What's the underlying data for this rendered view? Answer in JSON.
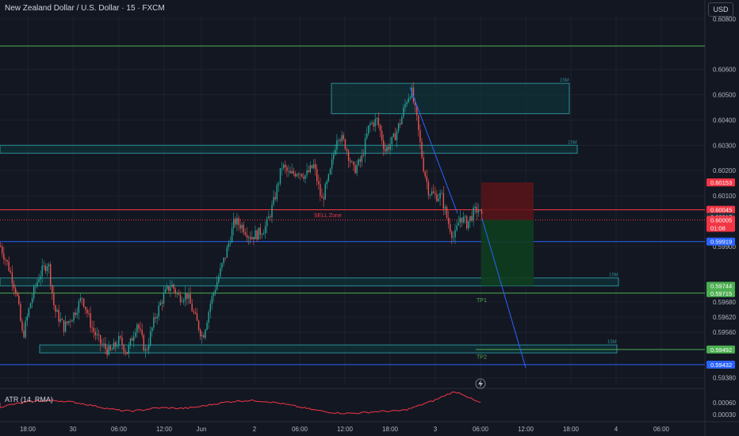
{
  "header": {
    "title": "New Zealand Dollar / U.S. Dollar · 15 · FXCM",
    "currency_button": "USD"
  },
  "indicator": {
    "label": "ATR (14, RMA)",
    "right_ticks": [
      "0.00060",
      "0.00030"
    ]
  },
  "colors": {
    "background": "#131722",
    "up_candle": "#26a69a",
    "down_candle": "#ef5350",
    "grid": "#1e222d",
    "zone_fill": "#0e3a3f",
    "zone_border": "#2a8d96",
    "green_line": "#4caf50",
    "blue_line": "#2962ff",
    "red_line": "#f23645",
    "atr_line": "#f23645"
  },
  "chart_data": {
    "type": "candlestick",
    "symbol": "NZDUSD",
    "timeframe": "15",
    "ylim": [
      0.5936,
      0.6084
    ],
    "y_ticks": [
      "0.60800",
      "0.60600",
      "0.60500",
      "0.60400",
      "0.60300",
      "0.60200",
      "0.60100",
      "0.59900",
      "0.59680",
      "0.59620",
      "0.59560",
      "0.59380"
    ],
    "x_ticks": [
      "18:00",
      "30",
      "06:00",
      "12:00",
      "Jun",
      "2",
      "06:00",
      "12:00",
      "18:00",
      "3",
      "06:00",
      "12:00",
      "18:00",
      "4",
      "06:00"
    ],
    "price_path": [
      [
        0,
        0.599
      ],
      [
        10,
        0.5982
      ],
      [
        20,
        0.5972
      ],
      [
        28,
        0.5954
      ],
      [
        38,
        0.5968
      ],
      [
        48,
        0.5978
      ],
      [
        60,
        0.5984
      ],
      [
        68,
        0.5965
      ],
      [
        80,
        0.5958
      ],
      [
        92,
        0.5963
      ],
      [
        103,
        0.597
      ],
      [
        115,
        0.5958
      ],
      [
        125,
        0.5952
      ],
      [
        138,
        0.5948
      ],
      [
        150,
        0.5953
      ],
      [
        160,
        0.5948
      ],
      [
        172,
        0.596
      ],
      [
        183,
        0.5948
      ],
      [
        195,
        0.5962
      ],
      [
        205,
        0.597
      ],
      [
        215,
        0.5975
      ],
      [
        225,
        0.597
      ],
      [
        235,
        0.5971
      ],
      [
        245,
        0.5962
      ],
      [
        255,
        0.5954
      ],
      [
        265,
        0.5968
      ],
      [
        275,
        0.5978
      ],
      [
        285,
        0.5988
      ],
      [
        295,
        0.6
      ],
      [
        305,
        0.5998
      ],
      [
        315,
        0.5994
      ],
      [
        325,
        0.5995
      ],
      [
        335,
        0.5998
      ],
      [
        345,
        0.6008
      ],
      [
        355,
        0.6022
      ],
      [
        365,
        0.6018
      ],
      [
        375,
        0.602
      ],
      [
        385,
        0.6018
      ],
      [
        395,
        0.6022
      ],
      [
        405,
        0.6008
      ],
      [
        415,
        0.6018
      ],
      [
        425,
        0.6035
      ],
      [
        435,
        0.603
      ],
      [
        445,
        0.602
      ],
      [
        455,
        0.6024
      ],
      [
        465,
        0.6038
      ],
      [
        475,
        0.604
      ],
      [
        485,
        0.6028
      ],
      [
        495,
        0.6032
      ],
      [
        505,
        0.604
      ],
      [
        512,
        0.6048
      ],
      [
        518,
        0.6052
      ],
      [
        525,
        0.604
      ],
      [
        533,
        0.6022
      ],
      [
        540,
        0.6012
      ],
      [
        548,
        0.601
      ],
      [
        556,
        0.601
      ],
      [
        564,
        0.6
      ],
      [
        572,
        0.5993
      ],
      [
        580,
        0.6002
      ],
      [
        588,
        0.5999
      ],
      [
        596,
        0.6003
      ],
      [
        602,
        0.6005
      ],
      [
        608,
        0.6
      ]
    ],
    "horizontal_lines": [
      {
        "price": 0.60693,
        "label": "0.60693",
        "color": "#4caf50"
      },
      {
        "price": 0.60045,
        "label": "0.60045",
        "color": "#f23645"
      },
      {
        "price": 0.59919,
        "label": "0.59919",
        "color": "#2962ff"
      },
      {
        "price": 0.59715,
        "label": "0.59715",
        "color": "#4caf50"
      },
      {
        "price": 0.59432,
        "label": "0.59432",
        "color": "#2962ff"
      }
    ],
    "price_tags": [
      {
        "price": 0.60153,
        "label": "0.60153",
        "color": "#f23645"
      },
      {
        "price": 0.60045,
        "label": "0.60045",
        "color": "#f23645"
      },
      {
        "price": 0.60017,
        "label": "0.60017",
        "color": "#2a2e39"
      },
      {
        "price": 0.60005,
        "label": "0.60005",
        "sub": "01:08",
        "color": "#f23645"
      },
      {
        "price": 0.59919,
        "label": "0.59919",
        "color": "#2962ff"
      },
      {
        "price": 0.59744,
        "label": "0.59744",
        "color": "#4caf50"
      },
      {
        "price": 0.59715,
        "label": "0.59715",
        "color": "#4caf50"
      },
      {
        "price": 0.59492,
        "label": "0.59492",
        "color": "#4caf50"
      },
      {
        "price": 0.59432,
        "label": "0.59432",
        "color": "#2962ff"
      }
    ],
    "zones": [
      {
        "label": "15M",
        "x0": 418,
        "x1": 718,
        "top": 0.60545,
        "bottom": 0.60425
      },
      {
        "label": "15M",
        "x0": 0,
        "x1": 728,
        "top": 0.603,
        "bottom": 0.6027
      },
      {
        "label": "15M",
        "x0": 0,
        "x1": 780,
        "top": 0.59775,
        "bottom": 0.59745
      },
      {
        "label": "15M",
        "x0": 50,
        "x1": 778,
        "top": 0.5951,
        "bottom": 0.5948
      }
    ],
    "annotations": [
      {
        "text": "SELL Zone",
        "x": 396,
        "price": 0.60025,
        "color": "#f23645"
      },
      {
        "text": "TP1",
        "x": 601,
        "price": 0.5969,
        "color": "#4caf50"
      },
      {
        "text": "TP2",
        "x": 601,
        "price": 0.59465,
        "color": "#4caf50"
      }
    ],
    "position": {
      "x0": 607,
      "x1": 673,
      "stop": 0.60153,
      "entry": 0.60005,
      "target": 0.59744
    }
  }
}
